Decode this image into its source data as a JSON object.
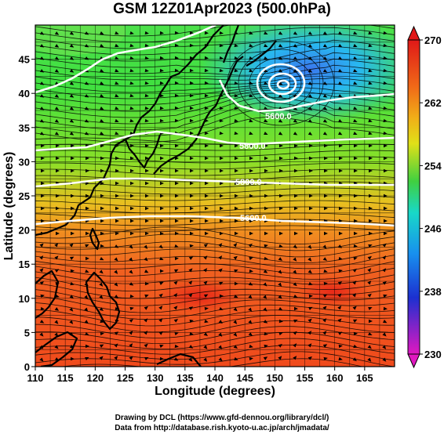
{
  "title": "GSM 12Z01Apr2023 (500.0hPa)",
  "xaxis": {
    "label": "Longitude (degrees)",
    "range": [
      110,
      170
    ],
    "ticks": [
      "110",
      "115",
      "120",
      "125",
      "130",
      "135",
      "140",
      "145",
      "150",
      "155",
      "160",
      "165"
    ]
  },
  "yaxis": {
    "label": "Latitude (degrees)",
    "range": [
      0,
      50
    ],
    "ticks": [
      "0",
      "5",
      "10",
      "15",
      "20",
      "25",
      "30",
      "35",
      "40",
      "45"
    ]
  },
  "colorbar": {
    "labels": [
      "270",
      "262",
      "254",
      "246",
      "238",
      "230"
    ],
    "range": [
      230,
      270
    ],
    "colors": [
      "#d6189c",
      "#2018c8",
      "#1890ee",
      "#18cfdc",
      "#20d04a",
      "#70e020",
      "#e8e018",
      "#f0a018",
      "#f05a18",
      "#e02818"
    ]
  },
  "contours": [
    "5600.0",
    "5800.0",
    "5800.0",
    "5600.0"
  ],
  "credits": [
    "Drawing by DCL (https://www.gfd-dennou.org/library/dcl/)",
    "Data from http://database.rish.kyoto-u.ac.jp/arch/jmadata/"
  ]
}
